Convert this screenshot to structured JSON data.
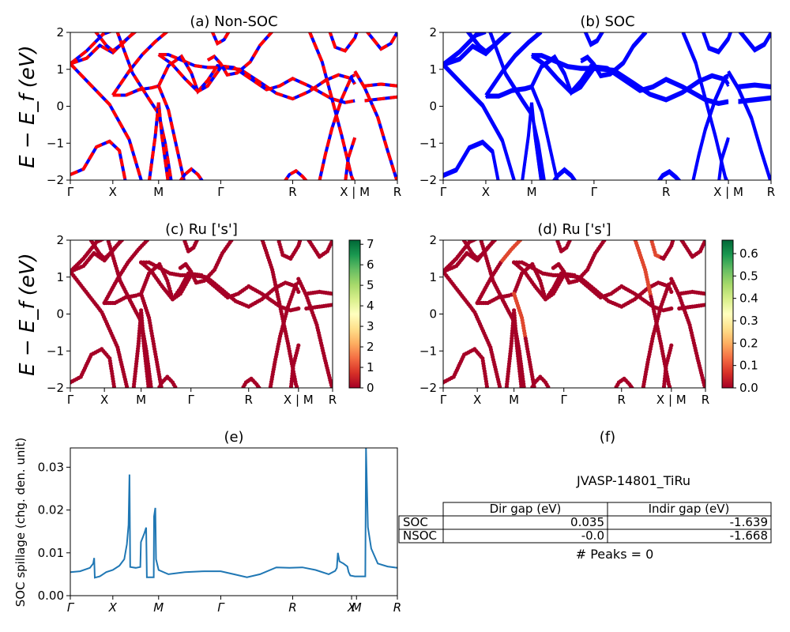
{
  "chart_data": [
    {
      "id": "a",
      "type": "line",
      "title": "(a) Non-SOC",
      "ylabel": "E − E_f (eV)",
      "ylim": [
        -2,
        2
      ],
      "yticks": [
        "−2",
        "−1",
        "0",
        "1",
        "2"
      ],
      "kticks": [
        "Γ",
        "X",
        "M",
        "Γ",
        "R",
        "X | M",
        "R"
      ],
      "kpos": [
        0,
        0.13,
        0.27,
        0.46,
        0.68,
        0.87,
        1.0
      ],
      "line_colors": [
        "#ff0000",
        "#0000ff"
      ],
      "dashed": true
    },
    {
      "id": "b",
      "type": "line",
      "title": "(b) SOC",
      "ylim": [
        -2,
        2
      ],
      "yticks": [
        "−2",
        "−1",
        "0",
        "1",
        "2"
      ],
      "kticks": [
        "Γ",
        "X",
        "M",
        "Γ",
        "R",
        "X | M",
        "R"
      ],
      "kpos": [
        0,
        0.13,
        0.27,
        0.46,
        0.68,
        0.87,
        1.0
      ],
      "line_colors": [
        "#0000ff"
      ]
    },
    {
      "id": "c",
      "type": "scatter",
      "title": "(c)  Ru ['s']",
      "ylabel": "E − E_f (eV)",
      "ylim": [
        -2,
        2
      ],
      "yticks": [
        "−2",
        "−1",
        "0",
        "1",
        "2"
      ],
      "kticks": [
        "Γ",
        "X",
        "M",
        "Γ",
        "R",
        "X | M",
        "R"
      ],
      "kpos": [
        0,
        0.13,
        0.27,
        0.46,
        0.68,
        0.87,
        1.0
      ],
      "colorbar": {
        "ticks": [
          "0",
          "1",
          "2",
          "3",
          "4",
          "5",
          "6",
          "7"
        ],
        "range": [
          0,
          7.2
        ],
        "colormap": "RdYlGn"
      }
    },
    {
      "id": "d",
      "type": "scatter",
      "title": "(d) Ru ['s']",
      "ylim": [
        -2,
        2
      ],
      "yticks": [
        "−2",
        "−1",
        "0",
        "1",
        "2"
      ],
      "kticks": [
        "Γ",
        "X",
        "M",
        "Γ",
        "R",
        "X | M",
        "R"
      ],
      "kpos": [
        0,
        0.13,
        0.27,
        0.46,
        0.68,
        0.87,
        1.0
      ],
      "colorbar": {
        "ticks": [
          "0.0",
          "0.1",
          "0.2",
          "0.3",
          "0.4",
          "0.5",
          "0.6"
        ],
        "range": [
          0,
          0.66
        ],
        "colormap": "RdYlGn"
      }
    },
    {
      "id": "e",
      "type": "line",
      "title": "(e)",
      "ylabel": "SOC spillage (chg. den. unit)",
      "ylim": [
        0,
        0.0345
      ],
      "yticks": [
        "0.00",
        "0.01",
        "0.02",
        "0.03"
      ],
      "ytick_values": [
        0,
        0.01,
        0.02,
        0.03
      ],
      "kticks": [
        "Γ",
        "X",
        "M",
        "Γ",
        "R",
        "X",
        "M",
        "R"
      ],
      "kpos": [
        0,
        0.13,
        0.27,
        0.46,
        0.68,
        0.86,
        0.875,
        1.0
      ],
      "color": "#1f77b4",
      "points": [
        [
          0,
          0.0055
        ],
        [
          0.03,
          0.0057
        ],
        [
          0.06,
          0.0065
        ],
        [
          0.07,
          0.0075
        ],
        [
          0.073,
          0.0088
        ],
        [
          0.075,
          0.0042
        ],
        [
          0.09,
          0.0045
        ],
        [
          0.11,
          0.0055
        ],
        [
          0.13,
          0.006
        ],
        [
          0.15,
          0.007
        ],
        [
          0.165,
          0.0085
        ],
        [
          0.173,
          0.012
        ],
        [
          0.178,
          0.0165
        ],
        [
          0.181,
          0.0283
        ],
        [
          0.183,
          0.0067
        ],
        [
          0.2,
          0.0065
        ],
        [
          0.214,
          0.0067
        ],
        [
          0.216,
          0.0125
        ],
        [
          0.226,
          0.0145
        ],
        [
          0.232,
          0.0159
        ],
        [
          0.234,
          0.0043
        ],
        [
          0.255,
          0.0043
        ],
        [
          0.256,
          0.0185
        ],
        [
          0.26,
          0.0205
        ],
        [
          0.262,
          0.0085
        ],
        [
          0.27,
          0.006
        ],
        [
          0.3,
          0.005
        ],
        [
          0.35,
          0.0055
        ],
        [
          0.41,
          0.0057
        ],
        [
          0.46,
          0.0057
        ],
        [
          0.5,
          0.005
        ],
        [
          0.54,
          0.0043
        ],
        [
          0.58,
          0.005
        ],
        [
          0.63,
          0.0066
        ],
        [
          0.67,
          0.0065
        ],
        [
          0.71,
          0.0066
        ],
        [
          0.75,
          0.006
        ],
        [
          0.79,
          0.005
        ],
        [
          0.81,
          0.0058
        ],
        [
          0.815,
          0.0065
        ],
        [
          0.818,
          0.01
        ],
        [
          0.823,
          0.008
        ],
        [
          0.835,
          0.0075
        ],
        [
          0.847,
          0.0068
        ],
        [
          0.851,
          0.0055
        ],
        [
          0.856,
          0.0047
        ],
        [
          0.87,
          0.0045
        ],
        [
          0.902,
          0.0045
        ],
        [
          0.904,
          0.0345
        ],
        [
          0.91,
          0.016
        ],
        [
          0.92,
          0.011
        ],
        [
          0.94,
          0.0075
        ],
        [
          0.97,
          0.0068
        ],
        [
          1.0,
          0.0065
        ]
      ]
    }
  ],
  "panel_f": {
    "title": "(f)",
    "material": "JVASP-14801_TiRu",
    "table": {
      "headers": [
        "Dir gap (eV)",
        "Indir gap (eV)"
      ],
      "rows": [
        {
          "label": "SOC",
          "dir": "0.035",
          "indir": "-1.639"
        },
        {
          "label": "NSOC",
          "dir": "-0.0",
          "indir": "-1.668"
        }
      ]
    },
    "peaks": "# Peaks = 0"
  }
}
